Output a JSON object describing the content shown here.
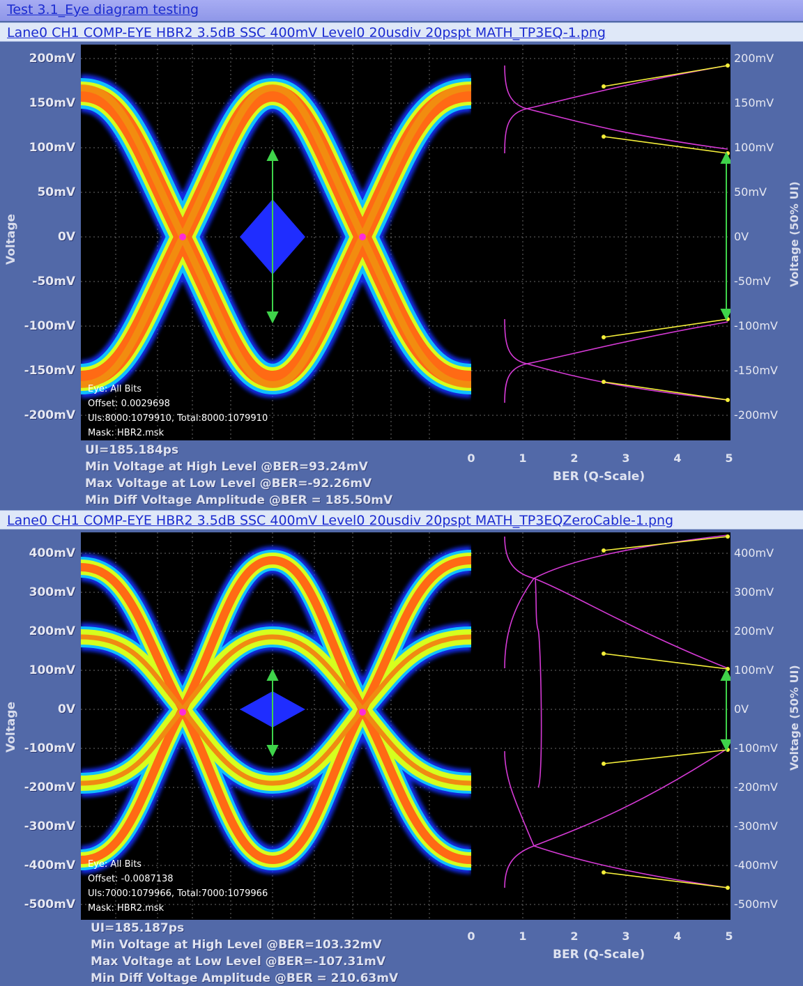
{
  "window": {
    "title": "Test 3.1_Eye diagram testing"
  },
  "colors": {
    "background": "#5269a8",
    "plot_background": "#000000",
    "mask": "#1f2dff",
    "arrow": "#3fd34a",
    "ber_curve": "#d63ad6",
    "ber_fit": "#f5ef3a"
  },
  "panels": [
    {
      "file_link": "Lane0 CH1 COMP-EYE HBR2 3.5dB SSC 400mV Level0 20usdiv 20pspt MATH_TP3EQ-1.png",
      "left_axis_title": "Voltage",
      "right_axis_title": "Voltage (50% UI)",
      "y_ticks": [
        "200mV",
        "150mV",
        "100mV",
        "50mV",
        "0V",
        "-50mV",
        "-100mV",
        "-150mV",
        "-200mV"
      ],
      "x_title": "BER (Q-Scale)",
      "x_ticks": [
        "0",
        "1",
        "2",
        "3",
        "4",
        "5"
      ],
      "overlay": {
        "eye": "Eye: All Bits",
        "offset": "Offset: 0.0029698",
        "uis": "UIs:8000:1079910, Total:8000:1079910",
        "mask": "Mask: HBR2.msk"
      },
      "stats": {
        "ui": "UI=185.184ps",
        "min_high": "Min Voltage at High Level @BER=93.24mV",
        "max_low": "Max Voltage at Low Level @BER=-92.26mV",
        "min_diff": "Min Diff Voltage Amplitude @BER = 185.50mV"
      },
      "chart_data": {
        "type": "scatter",
        "xlabel": "BER (Q-Scale)",
        "ylabel": "Voltage (50% UI)",
        "xlim": [
          0,
          5
        ],
        "ylim": [
          -200,
          200
        ],
        "min_voltage_high_mV": 93.24,
        "max_voltage_low_mV": -92.26,
        "min_diff_amplitude_mV": 185.5
      }
    },
    {
      "file_link": "Lane0 CH1 COMP-EYE HBR2 3.5dB SSC 400mV Level0 20usdiv 20pspt MATH_TP3EQZeroCable-1.png",
      "left_axis_title": "Voltage",
      "right_axis_title": "Voltage (50% UI)",
      "y_ticks": [
        "400mV",
        "300mV",
        "200mV",
        "100mV",
        "0V",
        "-100mV",
        "-200mV",
        "-300mV",
        "-400mV",
        "-500mV"
      ],
      "x_title": "BER (Q-Scale)",
      "x_ticks": [
        "0",
        "1",
        "2",
        "3",
        "4",
        "5"
      ],
      "overlay": {
        "eye": "Eye: All Bits",
        "offset": "Offset: -0.0087138",
        "uis": "UIs:7000:1079966, Total:7000:1079966",
        "mask": "Mask: HBR2.msk"
      },
      "stats": {
        "ui": "UI=185.187ps",
        "min_high": "Min Voltage at High Level @BER=103.32mV",
        "max_low": "Max Voltage at Low Level @BER=-107.31mV",
        "min_diff": "Min Diff Voltage Amplitude @BER = 210.63mV"
      },
      "chart_data": {
        "type": "scatter",
        "xlabel": "BER (Q-Scale)",
        "ylabel": "Voltage (50% UI)",
        "xlim": [
          0,
          5
        ],
        "ylim": [
          -500,
          400
        ],
        "min_voltage_high_mV": 103.32,
        "max_voltage_low_mV": -107.31,
        "min_diff_amplitude_mV": 210.63
      }
    }
  ]
}
